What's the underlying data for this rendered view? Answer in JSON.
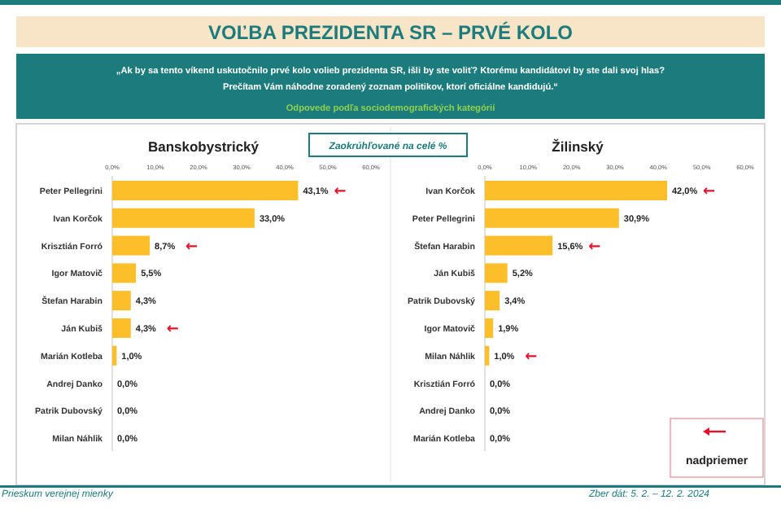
{
  "chart_data": [
    {
      "type": "bar",
      "orientation": "horizontal",
      "title": "Banskobystrický",
      "categories": [
        "Peter Pellegrini",
        "Ivan Korčok",
        "Krisztián Forró",
        "Igor Matovič",
        "Štefan Harabin",
        "Ján Kubiš",
        "Marián Kotleba",
        "Andrej Danko",
        "Patrik Dubovský",
        "Milan Náhlik"
      ],
      "values": [
        43.1,
        33.0,
        8.7,
        5.5,
        4.3,
        4.3,
        1.0,
        0.0,
        0.0,
        0.0
      ],
      "value_labels": [
        "43,1%",
        "33,0%",
        "8,7%",
        "5,5%",
        "4,3%",
        "4,3%",
        "1,0%",
        "0,0%",
        "0,0%",
        "0,0%"
      ],
      "color": "#fcbf2a",
      "xlim": [
        0,
        60
      ],
      "xticks": [
        {
          "value": 0,
          "label": "0,0%"
        },
        {
          "value": 10,
          "label": "10,0%"
        },
        {
          "value": 20,
          "label": "20,0%"
        },
        {
          "value": 30,
          "label": "30,0%"
        },
        {
          "value": 40,
          "label": "40,0%"
        },
        {
          "value": 50,
          "label": "50,0%"
        },
        {
          "value": 60,
          "label": "60,0%"
        }
      ],
      "annotations": [
        "VOĽBA PREZIDENTA SR – PRVÉ KOLO",
        "„Ak by sa tento víkend uskutočnilo prvé kolo volieb prezidenta SR, išli by ste voliť? Ktorému kandidátovi by ste dali svoj hlas?",
        "Prečítam Vám náhodne zoradený zoznam politikov, ktorí oficiálne kandidujú.“",
        "Odpovede podľa sociodemografických kategórií",
        "Zaokrúhľované na celé %",
        "Prieskum verejnej mienky",
        "Zber dát: 5. 2. – 12. 2. 2024",
        {
          "text": "←",
          "x": 43.1,
          "y": "Peter Pellegrini"
        },
        {
          "text": "←",
          "x": 8.7,
          "y": "Krisztián Forró"
        },
        {
          "text": "←",
          "x": 4.3,
          "y": "Ján Kubiš"
        }
      ]
    },
    {
      "type": "bar",
      "orientation": "horizontal",
      "title": "Žilinský",
      "categories": [
        "Ivan Korčok",
        "Peter Pellegrini",
        "Štefan Harabin",
        "Ján Kubiš",
        "Patrik Dubovský",
        "Igor Matovič",
        "Milan Náhlik",
        "Krisztián Forró",
        "Andrej Danko",
        "Marián Kotleba"
      ],
      "values": [
        42.0,
        30.9,
        15.6,
        5.2,
        3.4,
        1.9,
        1.0,
        0.0,
        0.0,
        0.0
      ],
      "value_labels": [
        "42,0%",
        "30,9%",
        "15,6%",
        "5,2%",
        "3,4%",
        "1,9%",
        "1,0%",
        "0,0%",
        "0,0%",
        "0,0%"
      ],
      "color": "#fcbf2a",
      "xlim": [
        0,
        60
      ],
      "xticks": [
        {
          "value": 0,
          "label": "0,0%"
        },
        {
          "value": 10,
          "label": "10,0%"
        },
        {
          "value": 20,
          "label": "20,0%"
        },
        {
          "value": 30,
          "label": "30,0%"
        },
        {
          "value": 40,
          "label": "40,0%"
        },
        {
          "value": 50,
          "label": "50,0%"
        },
        {
          "value": 60,
          "label": "60,0%"
        }
      ],
      "annotations": [
        "nadpriemer",
        {
          "text": "←",
          "x": 42.0,
          "y": "Ivan Korčok"
        },
        {
          "text": "←",
          "x": 15.6,
          "y": "Štefan Harabin"
        },
        {
          "text": "←",
          "x": 1.0,
          "y": "Milan Náhlik"
        }
      ]
    }
  ]
}
